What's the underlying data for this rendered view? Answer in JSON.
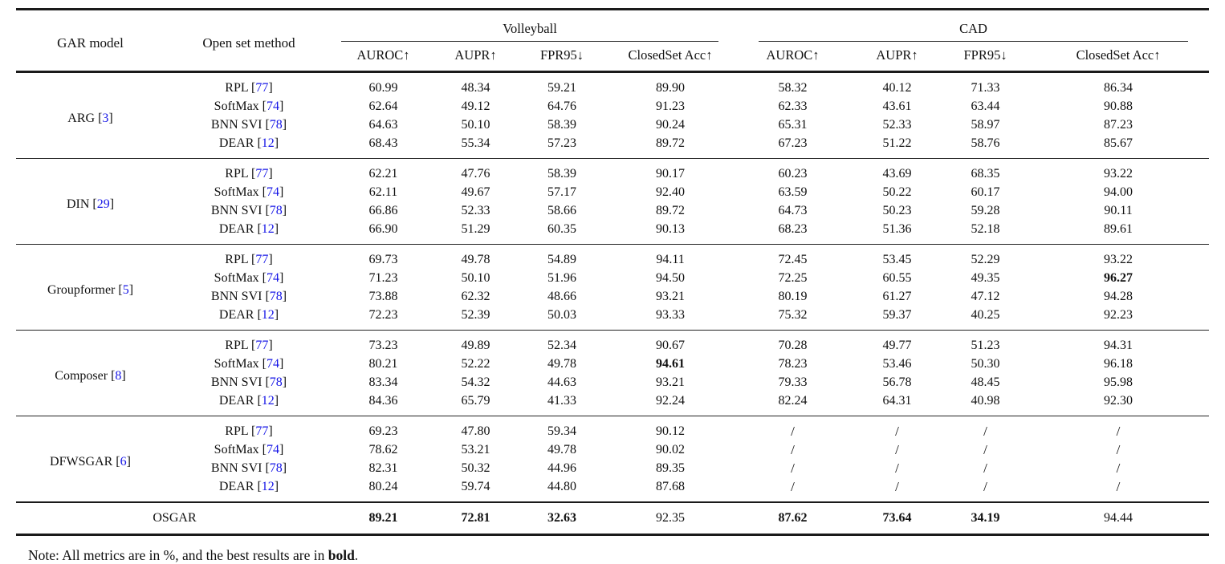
{
  "punct": {
    "lbr": "[",
    "rbr": "]",
    "space": " "
  },
  "colors": {
    "citation": "#1515e6",
    "text": "#111111",
    "rule": "#1a1a1a"
  },
  "header": {
    "gar_model": "GAR model",
    "open_set_method": "Open set method",
    "groups": [
      {
        "label": "Volleyball"
      },
      {
        "label": "CAD"
      }
    ],
    "metrics": [
      "AUROC↑",
      "AUPR↑",
      "FPR95↓",
      "ClosedSet Acc↑"
    ]
  },
  "blocks": [
    {
      "model": "ARG",
      "model_cite": "3",
      "rows": [
        {
          "method": "RPL",
          "cite": "77",
          "volleyball": [
            "60.99",
            "48.34",
            "59.21",
            "89.90"
          ],
          "cad": [
            "58.32",
            "40.12",
            "71.33",
            "86.34"
          ]
        },
        {
          "method": "SoftMax",
          "cite": "74",
          "volleyball": [
            "62.64",
            "49.12",
            "64.76",
            "91.23"
          ],
          "cad": [
            "62.33",
            "43.61",
            "63.44",
            "90.88"
          ]
        },
        {
          "method": "BNN SVI",
          "cite": "78",
          "volleyball": [
            "64.63",
            "50.10",
            "58.39",
            "90.24"
          ],
          "cad": [
            "65.31",
            "52.33",
            "58.97",
            "87.23"
          ]
        },
        {
          "method": "DEAR",
          "cite": "12",
          "volleyball": [
            "68.43",
            "55.34",
            "57.23",
            "89.72"
          ],
          "cad": [
            "67.23",
            "51.22",
            "58.76",
            "85.67"
          ]
        }
      ]
    },
    {
      "model": "DIN",
      "model_cite": "29",
      "rows": [
        {
          "method": "RPL",
          "cite": "77",
          "volleyball": [
            "62.21",
            "47.76",
            "58.39",
            "90.17"
          ],
          "cad": [
            "60.23",
            "43.69",
            "68.35",
            "93.22"
          ]
        },
        {
          "method": "SoftMax",
          "cite": "74",
          "volleyball": [
            "62.11",
            "49.67",
            "57.17",
            "92.40"
          ],
          "cad": [
            "63.59",
            "50.22",
            "60.17",
            "94.00"
          ]
        },
        {
          "method": "BNN SVI",
          "cite": "78",
          "volleyball": [
            "66.86",
            "52.33",
            "58.66",
            "89.72"
          ],
          "cad": [
            "64.73",
            "50.23",
            "59.28",
            "90.11"
          ]
        },
        {
          "method": "DEAR",
          "cite": "12",
          "volleyball": [
            "66.90",
            "51.29",
            "60.35",
            "90.13"
          ],
          "cad": [
            "68.23",
            "51.36",
            "52.18",
            "89.61"
          ]
        }
      ]
    },
    {
      "model": "Groupformer",
      "model_cite": "5",
      "rows": [
        {
          "method": "RPL",
          "cite": "77",
          "volleyball": [
            "69.73",
            "49.78",
            "54.89",
            "94.11"
          ],
          "cad": [
            "72.45",
            "53.45",
            "52.29",
            "93.22"
          ]
        },
        {
          "method": "SoftMax",
          "cite": "74",
          "volleyball": [
            "71.23",
            "50.10",
            "51.96",
            "94.50"
          ],
          "cad": [
            "72.25",
            "60.55",
            "49.35",
            "96.27"
          ],
          "bold_cad": [
            3
          ]
        },
        {
          "method": "BNN SVI",
          "cite": "78",
          "volleyball": [
            "73.88",
            "62.32",
            "48.66",
            "93.21"
          ],
          "cad": [
            "80.19",
            "61.27",
            "47.12",
            "94.28"
          ]
        },
        {
          "method": "DEAR",
          "cite": "12",
          "volleyball": [
            "72.23",
            "52.39",
            "50.03",
            "93.33"
          ],
          "cad": [
            "75.32",
            "59.37",
            "40.25",
            "92.23"
          ]
        }
      ]
    },
    {
      "model": "Composer",
      "model_cite": "8",
      "rows": [
        {
          "method": "RPL",
          "cite": "77",
          "volleyball": [
            "73.23",
            "49.89",
            "52.34",
            "90.67"
          ],
          "cad": [
            "70.28",
            "49.77",
            "51.23",
            "94.31"
          ]
        },
        {
          "method": "SoftMax",
          "cite": "74",
          "volleyball": [
            "80.21",
            "52.22",
            "49.78",
            "94.61"
          ],
          "cad": [
            "78.23",
            "53.46",
            "50.30",
            "96.18"
          ],
          "bold_vb": [
            3
          ]
        },
        {
          "method": "BNN SVI",
          "cite": "78",
          "volleyball": [
            "83.34",
            "54.32",
            "44.63",
            "93.21"
          ],
          "cad": [
            "79.33",
            "56.78",
            "48.45",
            "95.98"
          ]
        },
        {
          "method": "DEAR",
          "cite": "12",
          "volleyball": [
            "84.36",
            "65.79",
            "41.33",
            "92.24"
          ],
          "cad": [
            "82.24",
            "64.31",
            "40.98",
            "92.30"
          ]
        }
      ]
    },
    {
      "model": "DFWSGAR",
      "model_cite": "6",
      "rows": [
        {
          "method": "RPL",
          "cite": "77",
          "volleyball": [
            "69.23",
            "47.80",
            "59.34",
            "90.12"
          ],
          "cad": [
            "/",
            "/",
            "/",
            "/"
          ]
        },
        {
          "method": "SoftMax",
          "cite": "74",
          "volleyball": [
            "78.62",
            "53.21",
            "49.78",
            "90.02"
          ],
          "cad": [
            "/",
            "/",
            "/",
            "/"
          ]
        },
        {
          "method": "BNN SVI",
          "cite": "78",
          "volleyball": [
            "82.31",
            "50.32",
            "44.96",
            "89.35"
          ],
          "cad": [
            "/",
            "/",
            "/",
            "/"
          ]
        },
        {
          "method": "DEAR",
          "cite": "12",
          "volleyball": [
            "80.24",
            "59.74",
            "44.80",
            "87.68"
          ],
          "cad": [
            "/",
            "/",
            "/",
            "/"
          ]
        }
      ]
    }
  ],
  "footer": {
    "label": "OSGAR",
    "volleyball": [
      "89.21",
      "72.81",
      "32.63",
      "92.35"
    ],
    "cad": [
      "87.62",
      "73.64",
      "34.19",
      "94.44"
    ],
    "bold_vb": [
      0,
      1,
      2
    ],
    "bold_cad": [
      0,
      1,
      2
    ]
  },
  "note": {
    "prefix": "Note: All metrics are in %, and the best results are in ",
    "bold_word": "bold",
    "suffix": "."
  }
}
